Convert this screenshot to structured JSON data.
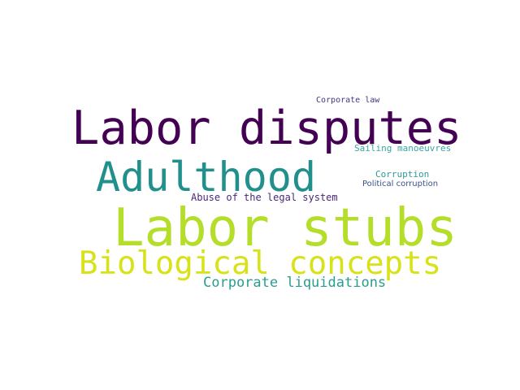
{
  "word_cloud": {
    "background_color": "#ffffff",
    "words": [
      {
        "text": "Labor disputes",
        "color": "#440154"
      },
      {
        "text": "Adulthood",
        "color": "#21908c"
      },
      {
        "text": "Labor stubs",
        "color": "#b5de2b"
      },
      {
        "text": "Biological concepts",
        "color": "#d8e219"
      },
      {
        "text": "Corporate liquidations",
        "color": "#2a9d8f"
      },
      {
        "text": "Abuse of the legal system",
        "color": "#482878"
      },
      {
        "text": "Corporate law",
        "color": "#46337e"
      },
      {
        "text": "Sailing manoeuvres",
        "color": "#3ba5a0"
      },
      {
        "text": "Corruption",
        "color": "#2c9a96"
      },
      {
        "text": "Political corruption",
        "color": "#3b528b"
      }
    ]
  }
}
